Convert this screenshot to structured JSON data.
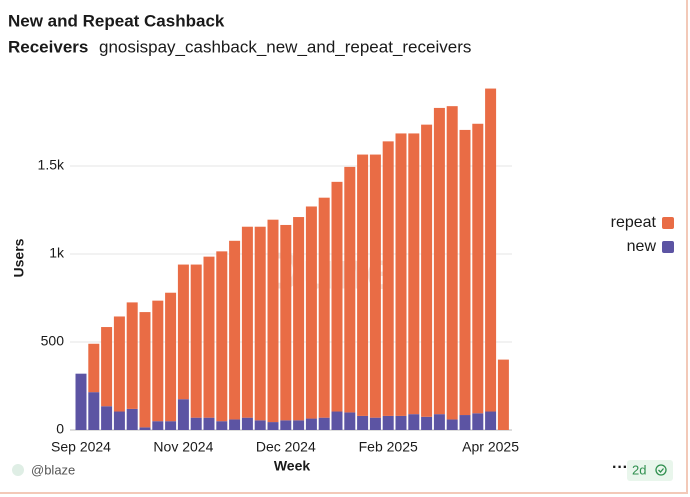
{
  "chart_data": {
    "type": "stacked_bar",
    "title": "New and Repeat Cashback",
    "subtitle": "Receivers",
    "query_name": "gnosispay_cashback_new_and_repeat_receivers",
    "watermark": "Dune",
    "x_label": "Week",
    "y_label": "Users",
    "categories": [
      "Sep 2024",
      null,
      null,
      null,
      null,
      null,
      null,
      null,
      "Nov 2024",
      null,
      null,
      null,
      null,
      null,
      null,
      null,
      "Dec 2024",
      null,
      null,
      null,
      null,
      null,
      null,
      null,
      "Feb 2025",
      null,
      null,
      null,
      null,
      null,
      null,
      null,
      "Apr 2025",
      null
    ],
    "series": [
      {
        "name": "repeat",
        "color": "#e96c45",
        "values": [
          0,
          275,
          450,
          540,
          605,
          655,
          685,
          730,
          765,
          870,
          915,
          965,
          1015,
          1085,
          1100,
          1150,
          1110,
          1155,
          1205,
          1250,
          1305,
          1395,
          1485,
          1495,
          1560,
          1605,
          1595,
          1660,
          1740,
          1780,
          1620,
          1645,
          1835,
          400
        ]
      },
      {
        "name": "new",
        "color": "#5c54a3",
        "values": [
          320,
          215,
          135,
          105,
          120,
          15,
          50,
          50,
          175,
          70,
          70,
          50,
          60,
          70,
          55,
          45,
          55,
          55,
          65,
          70,
          105,
          100,
          80,
          70,
          80,
          80,
          90,
          75,
          90,
          60,
          85,
          95,
          105,
          0
        ]
      }
    ],
    "ylim": [
      0,
      2000
    ],
    "yticks": [
      0,
      500,
      {
        "value": 1000,
        "label": "1k"
      },
      {
        "value": 1500,
        "label": "1.5k"
      }
    ],
    "grid": true,
    "legend": "right"
  },
  "footer": {
    "author": "@blaze",
    "age": "2d"
  }
}
